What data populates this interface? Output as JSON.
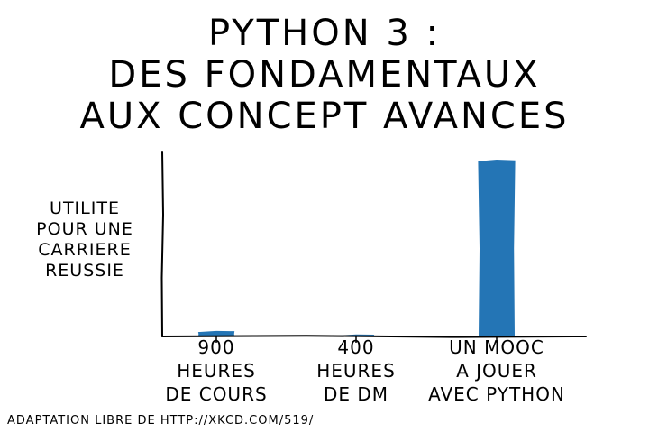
{
  "title_lines": [
    "PYTHON 3 :",
    "DES FONDAMENTAUX",
    "AUX CONCEPT AVANCES"
  ],
  "footnote": "ADAPTATION LIBRE DE HTTP://XKCD.COM/519/",
  "colors": {
    "bar": "#2475b5",
    "axis": "#000000",
    "background": "#ffffff"
  },
  "chart_data": {
    "type": "bar",
    "title": "PYTHON 3 : DES FONDAMENTAUX AUX CONCEPT AVANCES",
    "xlabel": "",
    "ylabel": "UTILITE POUR UNE CARRIERE REUSSIE",
    "ylabel_lines": [
      "UTILITE",
      "POUR UNE",
      "CARRIERE",
      "REUSSIE"
    ],
    "categories": [
      "900 HEURES DE COURS",
      "400 HEURES DE DM",
      "UN MOOC A JOUER AVEC PYTHON"
    ],
    "category_lines": [
      [
        "900",
        "HEURES",
        "DE COURS"
      ],
      [
        "400",
        "HEURES",
        "DE DM"
      ],
      [
        "UN MOOC",
        "A JOUER",
        "AVEC PYTHON"
      ]
    ],
    "values": [
      3,
      1,
      100
    ],
    "ylim": [
      0,
      105
    ],
    "grid": false,
    "legend": "none",
    "style": "xkcd"
  }
}
